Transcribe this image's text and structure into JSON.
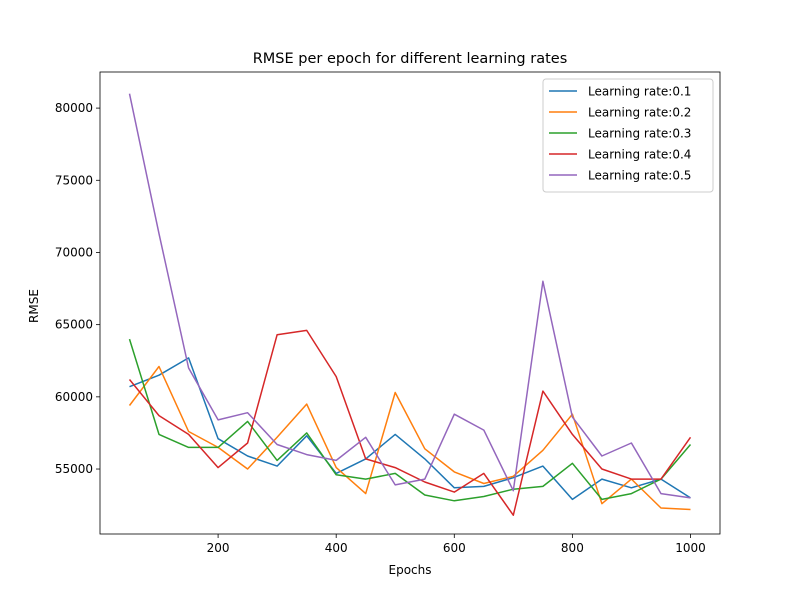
{
  "chart_data": {
    "type": "line",
    "title": "RMSE per epoch for different learning rates",
    "xlabel": "Epochs",
    "ylabel": "RMSE",
    "xlim": [
      0,
      1050
    ],
    "ylim": [
      50500,
      82500
    ],
    "xticks": [
      200,
      400,
      600,
      800,
      1000
    ],
    "yticks": [
      55000,
      60000,
      65000,
      70000,
      75000,
      80000
    ],
    "grid": false,
    "legend_position": "top-right",
    "x": [
      50,
      100,
      150,
      200,
      250,
      300,
      350,
      400,
      450,
      500,
      550,
      600,
      650,
      700,
      750,
      800,
      850,
      900,
      950,
      1000
    ],
    "series": [
      {
        "name": "Learning rate:0.1",
        "color": "#1f77b4",
        "values": [
          60700,
          61500,
          62700,
          57100,
          55900,
          55200,
          57300,
          54700,
          55700,
          57400,
          55700,
          53700,
          53800,
          54400,
          55200,
          52900,
          54300,
          53700,
          54300,
          53000
        ]
      },
      {
        "name": "Learning rate:0.2",
        "color": "#ff7f0e",
        "values": [
          59400,
          62100,
          57600,
          56500,
          55000,
          57200,
          59500,
          55100,
          53300,
          60300,
          56400,
          54800,
          54000,
          54500,
          56300,
          58800,
          52600,
          54300,
          52300,
          52200
        ]
      },
      {
        "name": "Learning rate:0.3",
        "color": "#2ca02c",
        "values": [
          64000,
          57400,
          56500,
          56500,
          58300,
          55600,
          57500,
          54600,
          54300,
          54700,
          53200,
          52800,
          53100,
          53600,
          53800,
          55400,
          52900,
          53300,
          54300,
          56700
        ]
      },
      {
        "name": "Learning rate:0.4",
        "color": "#d62728",
        "values": [
          61200,
          58700,
          57400,
          55100,
          56800,
          64300,
          64600,
          61400,
          55700,
          55100,
          54100,
          53400,
          54700,
          51800,
          60400,
          57400,
          55000,
          54300,
          54300,
          57200
        ]
      },
      {
        "name": "Learning rate:0.5",
        "color": "#9467bd",
        "values": [
          81000,
          71300,
          62000,
          58400,
          58900,
          56700,
          56000,
          55600,
          57200,
          53900,
          54300,
          58800,
          57700,
          53500,
          68000,
          58600,
          55900,
          56800,
          53300,
          53000
        ]
      }
    ]
  }
}
